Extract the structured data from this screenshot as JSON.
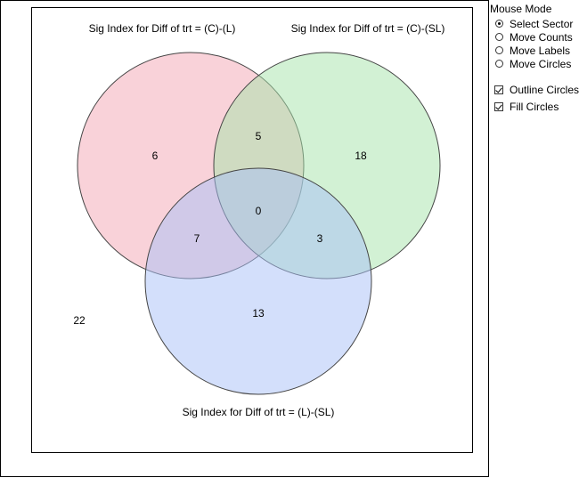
{
  "venn": {
    "labels": {
      "set_a": "Sig Index for Diff of trt = (C)-(L)",
      "set_b": "Sig Index for Diff of trt = (C)-(SL)",
      "set_c": "Sig Index for Diff of trt = (L)-(SL)"
    },
    "counts": {
      "a_only": "6",
      "a_and_b": "5",
      "b_only": "18",
      "a_b_c": "0",
      "a_and_c": "7",
      "b_and_c": "3",
      "c_only": "13",
      "outside": "22"
    },
    "colors": {
      "set_a": "#f4a6b4",
      "set_b": "#a6e3a9",
      "set_c": "#a8bff7"
    }
  },
  "panel": {
    "title": "Mouse Mode",
    "modes": [
      {
        "label": "Select Sector",
        "selected": true
      },
      {
        "label": "Move Counts",
        "selected": false
      },
      {
        "label": "Move Labels",
        "selected": false
      },
      {
        "label": "Move Circles",
        "selected": false
      }
    ],
    "options": [
      {
        "label": "Outline Circles",
        "checked": true
      },
      {
        "label": "Fill Circles",
        "checked": true
      }
    ]
  }
}
